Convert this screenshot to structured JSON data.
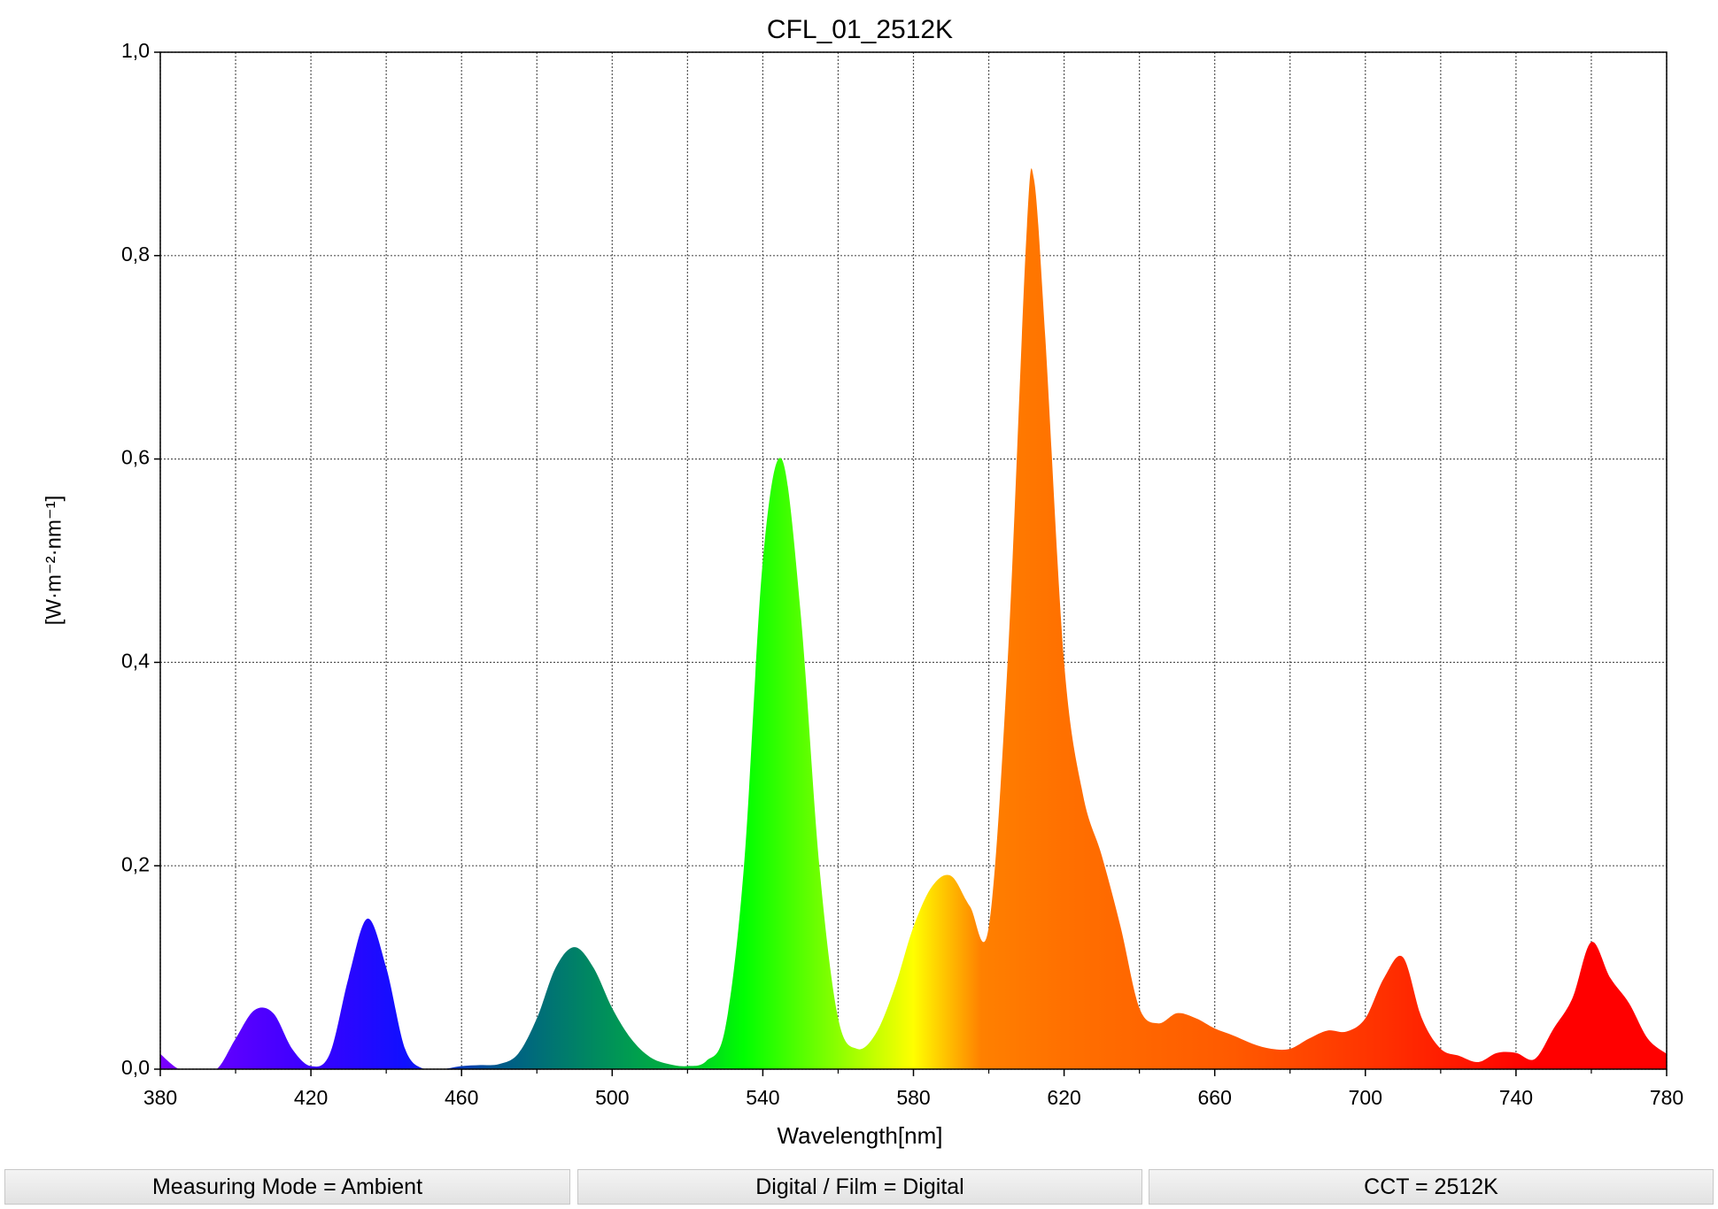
{
  "chart_data": {
    "type": "area",
    "title": "CFL_01_2512K",
    "x_label": "Wavelength[nm]",
    "y_label": "[W·m⁻²·nm⁻¹]",
    "x": [
      380,
      385,
      390,
      395,
      400,
      405,
      410,
      415,
      420,
      425,
      430,
      435,
      440,
      445,
      450,
      455,
      460,
      465,
      470,
      475,
      480,
      485,
      490,
      495,
      500,
      505,
      510,
      515,
      520,
      525,
      530,
      535,
      540,
      545,
      550,
      555,
      560,
      565,
      570,
      575,
      580,
      585,
      590,
      595,
      600,
      605,
      610,
      612,
      615,
      620,
      625,
      630,
      635,
      640,
      645,
      650,
      655,
      660,
      665,
      670,
      675,
      680,
      685,
      690,
      695,
      700,
      705,
      710,
      715,
      720,
      725,
      730,
      735,
      740,
      745,
      750,
      755,
      760,
      765,
      770,
      775,
      780
    ],
    "values": [
      0.015,
      0,
      0,
      0,
      0.03,
      0.058,
      0.055,
      0.02,
      0.003,
      0.015,
      0.09,
      0.148,
      0.1,
      0.02,
      0,
      0,
      0.003,
      0.004,
      0.005,
      0.015,
      0.05,
      0.1,
      0.12,
      0.1,
      0.06,
      0.03,
      0.012,
      0.005,
      0.003,
      0.008,
      0.04,
      0.2,
      0.5,
      0.6,
      0.45,
      0.2,
      0.05,
      0.02,
      0.035,
      0.08,
      0.14,
      0.18,
      0.19,
      0.16,
      0.14,
      0.4,
      0.82,
      0.875,
      0.72,
      0.4,
      0.27,
      0.21,
      0.14,
      0.06,
      0.045,
      0.055,
      0.05,
      0.04,
      0.033,
      0.025,
      0.02,
      0.02,
      0.03,
      0.038,
      0.037,
      0.05,
      0.09,
      0.11,
      0.05,
      0.02,
      0.013,
      0.007,
      0.016,
      0.016,
      0.01,
      0.04,
      0.07,
      0.125,
      0.09,
      0.065,
      0.03,
      0.015
    ],
    "color_stops": [
      {
        "x": 380,
        "color": "#7a00ff"
      },
      {
        "x": 420,
        "color": "#3a00ff"
      },
      {
        "x": 445,
        "color": "#1010ff"
      },
      {
        "x": 470,
        "color": "#005a8a"
      },
      {
        "x": 490,
        "color": "#008068"
      },
      {
        "x": 515,
        "color": "#00b040"
      },
      {
        "x": 535,
        "color": "#00ff00"
      },
      {
        "x": 560,
        "color": "#8cff00"
      },
      {
        "x": 580,
        "color": "#ffff00"
      },
      {
        "x": 598,
        "color": "#ff8000"
      },
      {
        "x": 620,
        "color": "#ff7000"
      },
      {
        "x": 665,
        "color": "#ff5a00"
      },
      {
        "x": 705,
        "color": "#ff3000"
      },
      {
        "x": 745,
        "color": "#ff0000"
      }
    ],
    "xlim": [
      380,
      780
    ],
    "ylim": [
      0,
      1
    ],
    "xticks": [
      380,
      420,
      460,
      500,
      540,
      580,
      620,
      660,
      700,
      740,
      780
    ],
    "xminorticks": [
      400,
      440,
      480,
      520,
      560,
      600,
      640,
      680,
      720,
      760
    ],
    "yticks": [
      {
        "value": 0,
        "label": "0,0"
      },
      {
        "value": 0.2,
        "label": "0,2"
      },
      {
        "value": 0.4,
        "label": "0,4"
      },
      {
        "value": 0.6,
        "label": "0,6"
      },
      {
        "value": 0.8,
        "label": "0,8"
      },
      {
        "value": 1,
        "label": "1,0"
      }
    ],
    "grid": true
  },
  "status_bar": [
    "Measuring Mode = Ambient",
    "Digital / Film = Digital",
    "CCT = 2512K"
  ]
}
